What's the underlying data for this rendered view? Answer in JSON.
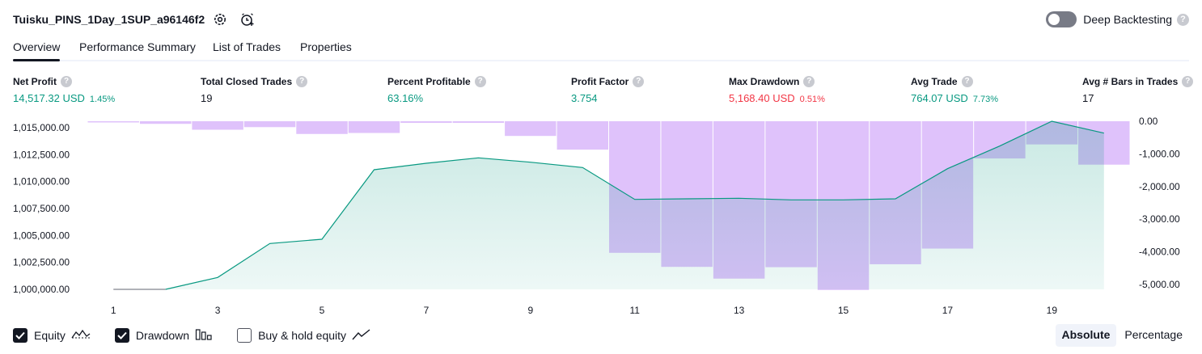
{
  "header": {
    "strategy_title": "Tuisku_PINS_1Day_1SUP_a96146f2",
    "settings_icon": "settings-gear-icon",
    "alert_icon": "add-alert-clock-icon",
    "deep_backtesting_label": "Deep Backtesting",
    "deep_backtesting_enabled": false,
    "help_glyph": "?"
  },
  "tabs": [
    {
      "label": "Overview",
      "active": true
    },
    {
      "label": "Performance Summary",
      "active": false
    },
    {
      "label": "List of Trades",
      "active": false
    },
    {
      "label": "Properties",
      "active": false
    }
  ],
  "metrics": [
    {
      "label": "Net Profit",
      "value": "14,517.32 USD",
      "pct": "1.45%",
      "color": "#089981"
    },
    {
      "label": "Total Closed Trades",
      "value": "19",
      "pct": "",
      "color": "#131722"
    },
    {
      "label": "Percent Profitable",
      "value": "63.16%",
      "pct": "",
      "color": "#089981"
    },
    {
      "label": "Profit Factor",
      "value": "3.754",
      "pct": "",
      "color": "#089981"
    },
    {
      "label": "Max Drawdown",
      "value": "5,168.40 USD",
      "pct": "0.51%",
      "color": "#f23645"
    },
    {
      "label": "Avg Trade",
      "value": "764.07 USD",
      "pct": "7.73%",
      "color": "#089981"
    },
    {
      "label": "Avg # Bars in Trades",
      "value": "17",
      "pct": "",
      "color": "#131722"
    }
  ],
  "chart_data": {
    "type": "area",
    "x": [
      1,
      2,
      3,
      4,
      5,
      6,
      7,
      8,
      9,
      10,
      11,
      12,
      13,
      14,
      15,
      16,
      17,
      18,
      19,
      20
    ],
    "x_ticks": [
      "1",
      "3",
      "5",
      "7",
      "9",
      "11",
      "13",
      "15",
      "17",
      "19"
    ],
    "y_left_ticks": [
      "1,000,000.00",
      "1,002,500.00",
      "1,005,000.00",
      "1,007,500.00",
      "1,010,000.00",
      "1,012,500.00",
      "1,015,000.00"
    ],
    "y_left_range": [
      1000000,
      1015000
    ],
    "y_right_ticks": [
      "0.00",
      "-1,000.00",
      "-2,000.00",
      "-3,000.00",
      "-4,000.00",
      "-5,000.00"
    ],
    "y_right_range": [
      -5000,
      0
    ],
    "series": [
      {
        "name": "Equity",
        "kind": "area",
        "color": "#089981",
        "fill": "#d4efe7",
        "values": [
          1000000,
          1000000,
          1001100,
          1004250,
          1004650,
          1011100,
          1011700,
          1012200,
          1011800,
          1011300,
          1008350,
          1008400,
          1008450,
          1008300,
          1008300,
          1008400,
          1011200,
          1013300,
          1015600,
          1014500
        ]
      },
      {
        "name": "Drawdown",
        "kind": "bar",
        "color": "#dcbdfb",
        "values": [
          0,
          -80,
          -260,
          -180,
          -390,
          -360,
          -50,
          -50,
          -450,
          -870,
          -4030,
          -4460,
          -4820,
          -4470,
          -5168.4,
          -4380,
          -3900,
          -1140,
          -710,
          -1330
        ]
      }
    ],
    "grid": false
  },
  "legend": {
    "items": [
      {
        "label": "Equity",
        "checked": true,
        "icon": "equity-line-icon"
      },
      {
        "label": "Drawdown",
        "checked": true,
        "icon": "drawdown-bars-icon"
      },
      {
        "label": "Buy & hold equity",
        "checked": false,
        "icon": "buy-hold-line-icon"
      }
    ]
  },
  "display_mode": {
    "options": [
      "Absolute",
      "Percentage"
    ],
    "selected": "Absolute"
  }
}
